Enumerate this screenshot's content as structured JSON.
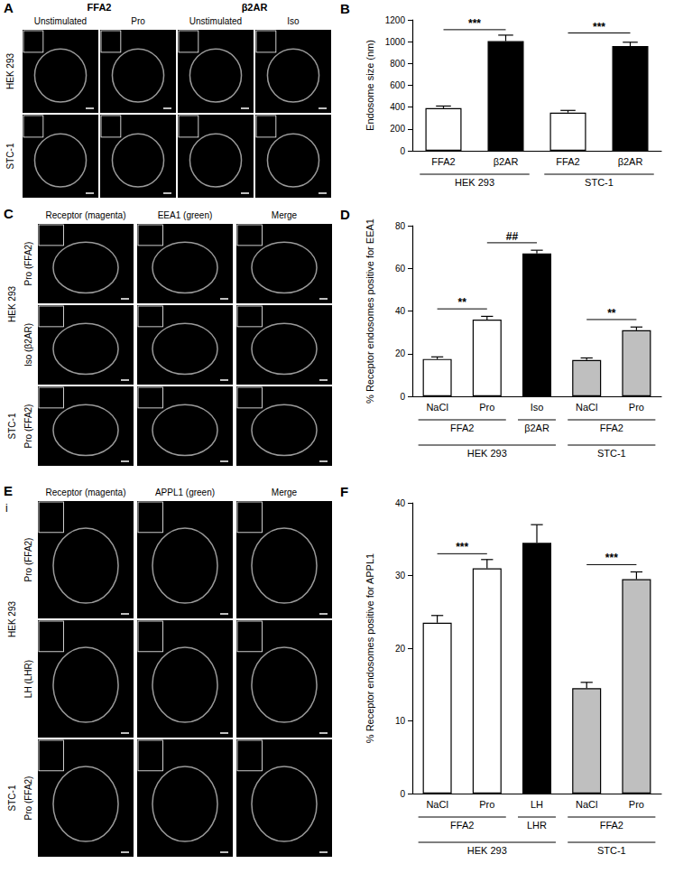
{
  "image_panels": {
    "A": {
      "columns": [
        {
          "header": "FFA2",
          "conditions": [
            "Unstimulated",
            "Pro"
          ]
        },
        {
          "header": "β2AR",
          "conditions": [
            "Unstimulated",
            "Iso"
          ]
        }
      ],
      "rows": [
        "HEK 293",
        "STC-1"
      ]
    },
    "C": {
      "columns": [
        "Receptor (magenta)",
        "EEA1 (green)",
        "Merge"
      ],
      "row_groups": [
        {
          "label": "HEK 293",
          "rows": [
            "Pro (FFA2)",
            "Iso (β2AR)"
          ]
        },
        {
          "label": "STC-1",
          "rows": [
            "Pro (FFA2)"
          ]
        }
      ]
    },
    "E": {
      "sublabel": "i",
      "columns": [
        "Receptor (magenta)",
        "APPL1 (green)",
        "Merge"
      ],
      "row_groups": [
        {
          "label": "HEK 293",
          "rows": [
            "Pro (FFA2)",
            "LH (LHR)"
          ]
        },
        {
          "label": "STC-1",
          "rows": [
            "Pro (FFA2)"
          ]
        }
      ]
    }
  },
  "chart_data": [
    {
      "panel": "B",
      "type": "bar",
      "y_label": "Endosome size (nm)",
      "categories": [
        "FFA2",
        "β2AR",
        "FFA2",
        "β2AR"
      ],
      "values": [
        390,
        1005,
        350,
        960
      ],
      "errors": [
        20,
        55,
        20,
        35
      ],
      "colors": [
        "#ffffff",
        "#000000",
        "#ffffff",
        "#000000"
      ],
      "ylim": [
        0,
        1200
      ],
      "yticks": [
        0,
        200,
        400,
        600,
        800,
        1000,
        1200
      ],
      "grid": false,
      "label_rows": [
        [
          {
            "label": "HEK 293",
            "from": 0,
            "to": 1
          },
          {
            "label": "STC-1",
            "from": 2,
            "to": 3
          }
        ]
      ],
      "significance": [
        {
          "text": "***",
          "from": 0,
          "to": 1,
          "y": 1110
        },
        {
          "text": "***",
          "from": 2,
          "to": 3,
          "y": 1080
        }
      ]
    },
    {
      "panel": "D",
      "type": "bar",
      "y_label": "% Receptor endosomes positive for EEA1",
      "categories": [
        "NaCl",
        "Pro",
        "Iso",
        "NaCl",
        "Pro"
      ],
      "values": [
        17.5,
        36,
        67,
        17,
        31
      ],
      "errors": [
        1,
        1.5,
        1.5,
        1,
        1.5
      ],
      "colors": [
        "#ffffff",
        "#ffffff",
        "#000000",
        "#bfbfbf",
        "#bfbfbf"
      ],
      "ylim": [
        0,
        80
      ],
      "yticks": [
        0,
        20,
        40,
        60,
        80
      ],
      "grid": false,
      "label_rows": [
        [
          {
            "label": "FFA2",
            "from": 0,
            "to": 1
          },
          {
            "label": "β2AR",
            "from": 2,
            "to": 2
          },
          {
            "label": "FFA2",
            "from": 3,
            "to": 4
          }
        ],
        [
          {
            "label": "HEK 293",
            "from": 0,
            "to": 2
          },
          {
            "label": "STC-1",
            "from": 3,
            "to": 4
          }
        ]
      ],
      "significance": [
        {
          "text": "**",
          "from": 0,
          "to": 1,
          "y": 41
        },
        {
          "text": "##",
          "from": 1,
          "to": 2,
          "y": 72
        },
        {
          "text": "**",
          "from": 3,
          "to": 4,
          "y": 36
        }
      ]
    },
    {
      "panel": "F",
      "type": "bar",
      "y_label": "% Receptor endosomes positive for APPL1",
      "categories": [
        "NaCl",
        "Pro",
        "LH",
        "NaCl",
        "Pro"
      ],
      "values": [
        23.5,
        31,
        34.5,
        14.5,
        29.5
      ],
      "errors": [
        1,
        1.2,
        2.5,
        0.8,
        1
      ],
      "colors": [
        "#ffffff",
        "#ffffff",
        "#000000",
        "#bfbfbf",
        "#bfbfbf"
      ],
      "ylim": [
        0,
        40
      ],
      "yticks": [
        0,
        10,
        20,
        30,
        40
      ],
      "grid": false,
      "label_rows": [
        [
          {
            "label": "FFA2",
            "from": 0,
            "to": 1
          },
          {
            "label": "LHR",
            "from": 2,
            "to": 2
          },
          {
            "label": "FFA2",
            "from": 3,
            "to": 4
          }
        ],
        [
          {
            "label": "HEK 293",
            "from": 0,
            "to": 2
          },
          {
            "label": "STC-1",
            "from": 3,
            "to": 4
          }
        ]
      ],
      "significance": [
        {
          "text": "***",
          "from": 0,
          "to": 1,
          "y": 33
        },
        {
          "text": "***",
          "from": 3,
          "to": 4,
          "y": 31.5
        }
      ]
    }
  ]
}
